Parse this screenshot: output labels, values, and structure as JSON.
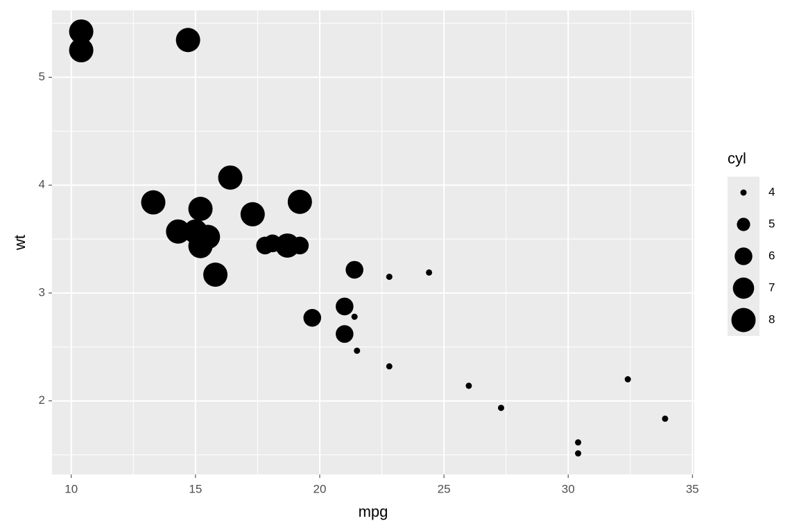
{
  "chart_data": {
    "type": "scatter",
    "x_label": "mpg",
    "y_label": "wt",
    "legend_title": "cyl",
    "color": "#000000",
    "grid": true,
    "xlim": [
      9.225,
      35.075
    ],
    "ylim": [
      1.3175,
      5.6196
    ],
    "xticks": [
      10,
      15,
      20,
      25,
      30,
      35
    ],
    "yticks": [
      2,
      3,
      4,
      5
    ],
    "x": [
      21.0,
      21.0,
      22.8,
      21.4,
      18.7,
      18.1,
      14.3,
      24.4,
      22.8,
      19.2,
      17.8,
      16.4,
      17.3,
      15.2,
      10.4,
      10.4,
      14.7,
      32.4,
      30.4,
      33.9,
      21.5,
      15.5,
      15.2,
      13.3,
      19.2,
      27.3,
      26.0,
      30.4,
      15.8,
      19.7,
      15.0,
      21.4
    ],
    "values": [
      2.62,
      2.875,
      2.32,
      3.215,
      3.44,
      3.46,
      3.57,
      3.19,
      3.15,
      3.44,
      3.44,
      4.07,
      3.73,
      3.78,
      5.25,
      5.424,
      5.345,
      2.2,
      1.615,
      1.835,
      2.465,
      3.52,
      3.435,
      3.84,
      3.845,
      1.935,
      2.14,
      1.513,
      3.17,
      2.77,
      3.57,
      2.78
    ],
    "sizes": [
      6,
      6,
      4,
      6,
      8,
      6,
      8,
      4,
      4,
      6,
      6,
      8,
      8,
      8,
      8,
      8,
      8,
      4,
      4,
      4,
      4,
      8,
      8,
      8,
      8,
      4,
      4,
      4,
      8,
      6,
      8,
      4
    ],
    "size_legend": [
      4,
      5,
      6,
      7,
      8
    ]
  }
}
